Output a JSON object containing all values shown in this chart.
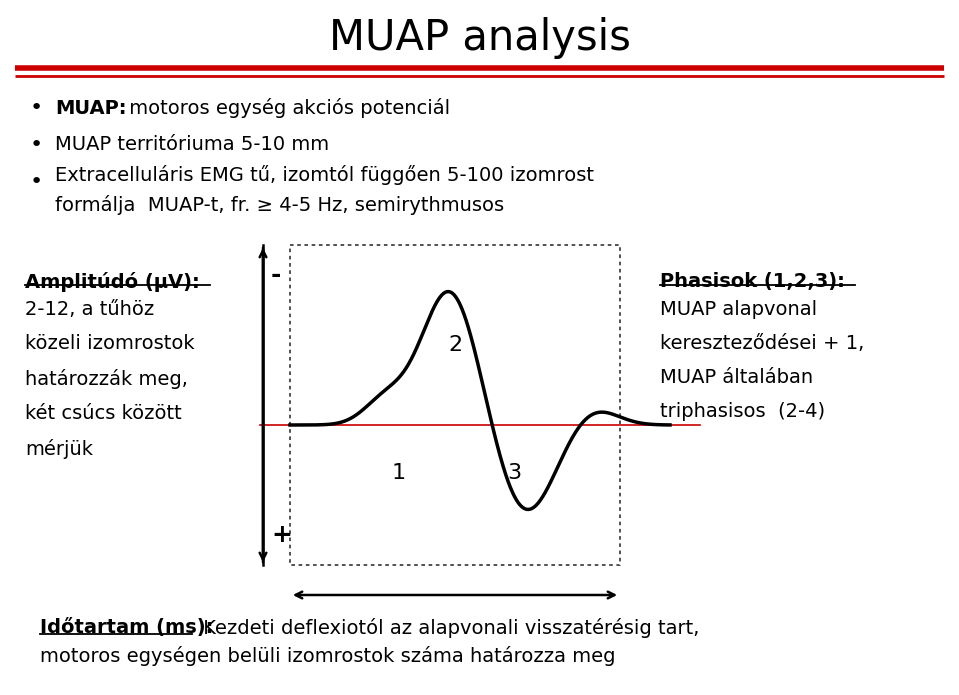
{
  "title": "MUAP analysis",
  "title_fontsize": 30,
  "background_color": "#ffffff",
  "red_line_color": "#cc0000",
  "bullet1_bold": "MUAP:",
  "bullet1_rest": " motoros egység akciós potenciál",
  "bullet2": "MUAP territóriuma 5-10 mm",
  "bullet3": "Extracelluláris EMG tű, izomtól függően 5-100 izomrost\n    formálja  MUAP-t, fr. ≥ 4-5 Hz, semirythmusos",
  "left_label_bold": "Amplitúdó (μV):",
  "left_label_text": "2-12, a tűhöz\nközeli izomrostok\nhatározzák meg,\nkét csúcs között\nmérjük",
  "right_label_bold": "Phasisok (1,2,3):",
  "right_label_text": "MUAP alapvonal\nkereszteződései + 1,\nMUAP általában\ntriphasisos  (2-4)",
  "bottom_label_bold": "Időtartam (ms):",
  "bottom_label_text": " Kezdeti deflexiotól az alapvonali visszatérésig tart,",
  "bottom_label_text2": "motoros egységen belüli izomrostok száma határozza meg",
  "minus_label": "-",
  "plus_label": "+",
  "phase_labels": [
    "1",
    "2",
    "3"
  ],
  "wave_color": "#000000",
  "baseline_color": "#cc0000",
  "font_size_body": 14,
  "font_size_labels": 13
}
